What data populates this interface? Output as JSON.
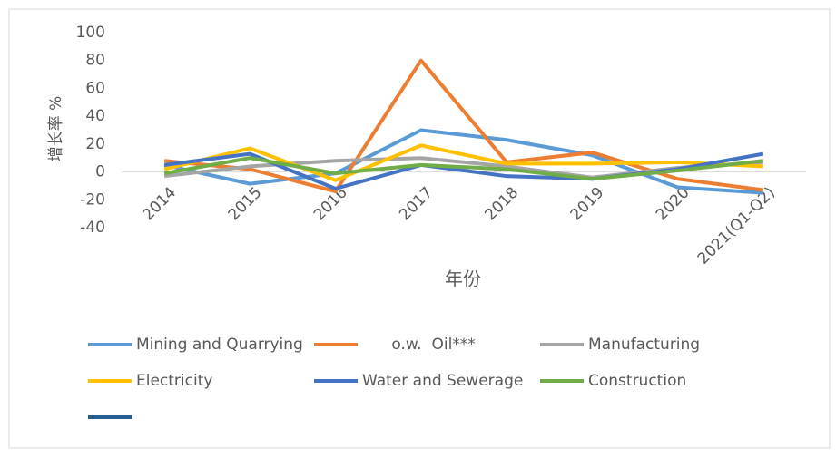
{
  "chart_data": {
    "type": "line",
    "y_label": "增长率 %",
    "x_label": "年份",
    "categories": [
      "2014",
      "2015",
      "2016",
      "2017",
      "2018",
      "2019",
      "2020",
      "2021(Q1-Q2)"
    ],
    "series": [
      {
        "name": "Mining and Quarrying",
        "color": "#5b9bd5",
        "values": [
          5,
          -8.5,
          -1,
          30,
          23,
          12,
          -11,
          -15
        ]
      },
      {
        "name": "      o.w.  Oil***",
        "color": "#ed7d31",
        "values": [
          8,
          2,
          -14,
          80,
          7,
          14,
          -5,
          -13
        ]
      },
      {
        "name": "Manufacturing",
        "color": "#a5a5a5",
        "values": [
          -3,
          4,
          8,
          10,
          4,
          -4,
          3,
          7
        ]
      },
      {
        "name": "Electricity",
        "color": "#ffc000",
        "values": [
          2,
          17,
          -6,
          19,
          6,
          6,
          7,
          4
        ]
      },
      {
        "name": "Water and Sewerage",
        "color": "#4472c4",
        "values": [
          5,
          13,
          -12,
          5,
          -3,
          -5,
          2,
          13
        ]
      },
      {
        "name": "Construction",
        "color": "#70ad47",
        "values": [
          -1,
          10,
          -1,
          5,
          2,
          -5,
          1,
          8
        ]
      },
      {
        "color": "#255e91",
        "values": [
          null,
          null,
          null,
          null,
          null,
          null,
          null,
          null
        ]
      }
    ],
    "ylim": [
      -40,
      100
    ],
    "yticks": [
      -40,
      -20,
      0,
      20,
      40,
      60,
      80,
      100
    ],
    "grid": false
  }
}
